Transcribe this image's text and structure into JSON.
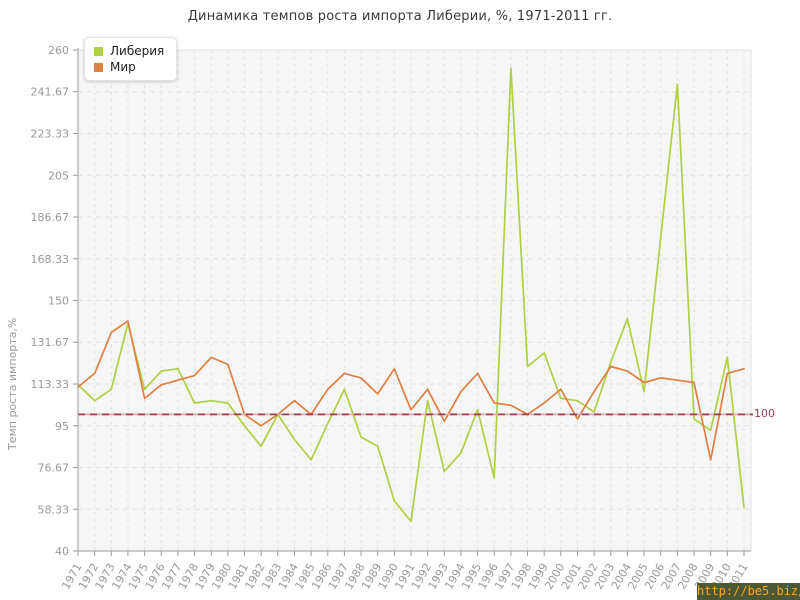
{
  "title": "Динамика темпов роста импорта Либерии, %, 1971-2011 гг.",
  "watermark": {
    "text": "http://be5.biz/"
  },
  "ref_line": {
    "value": 100,
    "label": "100",
    "color": "#9e3c4e",
    "base_color": "#dca8b1"
  },
  "legend": [
    {
      "label": "Либерия",
      "color": "#afd044"
    },
    {
      "label": "Мир",
      "color": "#e07f42"
    }
  ],
  "axis": {
    "y_label": "Темп роста импорта,%",
    "y_ticks": [
      "260",
      "241.67",
      "223.33",
      "205",
      "186.67",
      "168.33",
      "150",
      "131.67",
      "113.33",
      "95",
      "76.67",
      "58.33",
      "40"
    ],
    "tick_color": "#999999",
    "grid_color": "#e0e0e0",
    "axis_color": "#9a9a9a",
    "plot_bg": "#f6f6f6"
  },
  "chart_data": {
    "type": "line",
    "title": "Динамика темпов роста импорта Либерии, %, 1971-2011 гг.",
    "xlabel": "",
    "ylabel": "Темп роста импорта,%",
    "ylim": [
      40,
      260
    ],
    "grid": true,
    "legend_position": "top-left",
    "reference_line": 100,
    "x": [
      1971,
      1972,
      1973,
      1974,
      1975,
      1976,
      1977,
      1978,
      1979,
      1980,
      1981,
      1982,
      1983,
      1984,
      1985,
      1986,
      1987,
      1988,
      1989,
      1990,
      1991,
      1992,
      1993,
      1994,
      1995,
      1996,
      1997,
      1998,
      1999,
      2000,
      2001,
      2002,
      2003,
      2004,
      2005,
      2006,
      2007,
      2008,
      2009,
      2010,
      2011
    ],
    "series": [
      {
        "name": "Либерия",
        "slug": "liberia",
        "color": "#afd044",
        "values": [
          113,
          106,
          111,
          140,
          111,
          119,
          120,
          105,
          106,
          105,
          95,
          86,
          100,
          89,
          80,
          96,
          111,
          90,
          86,
          62,
          53,
          106,
          75,
          83,
          102,
          72,
          252,
          121,
          127,
          107,
          106,
          101,
          123,
          142,
          110,
          178,
          245,
          98,
          93,
          125,
          59
        ]
      },
      {
        "name": "Мир",
        "slug": "mir",
        "color": "#e07f42",
        "values": [
          112,
          118,
          136,
          141,
          107,
          113,
          115,
          117,
          125,
          122,
          100,
          95,
          100,
          106,
          100,
          111,
          118,
          116,
          109,
          120,
          102,
          111,
          97,
          110,
          118,
          105,
          104,
          100,
          105,
          111,
          98,
          110,
          121,
          119,
          114,
          116,
          115,
          114,
          80,
          118,
          120
        ]
      }
    ]
  }
}
